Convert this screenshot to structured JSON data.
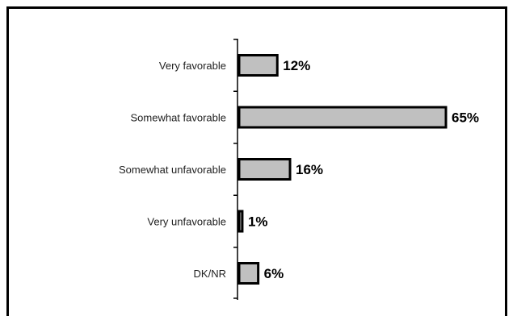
{
  "chart_data": {
    "type": "bar",
    "orientation": "horizontal",
    "categories": [
      "Very favorable",
      "Somewhat favorable",
      "Somewhat unfavorable",
      "Very unfavorable",
      "DK/NR"
    ],
    "values": [
      12,
      65,
      16,
      1,
      6
    ],
    "value_labels": [
      "12%",
      "65%",
      "16%",
      "1%",
      "6%"
    ],
    "unit": "%",
    "title": "",
    "xlabel": "",
    "ylabel": "",
    "xlim": [
      0,
      65
    ],
    "grid": false,
    "legend": "none",
    "colors": {
      "bar_fill": "#c0c0c0",
      "bar_outline": "#000000",
      "frame": "#000000",
      "axis": "#000000"
    }
  }
}
